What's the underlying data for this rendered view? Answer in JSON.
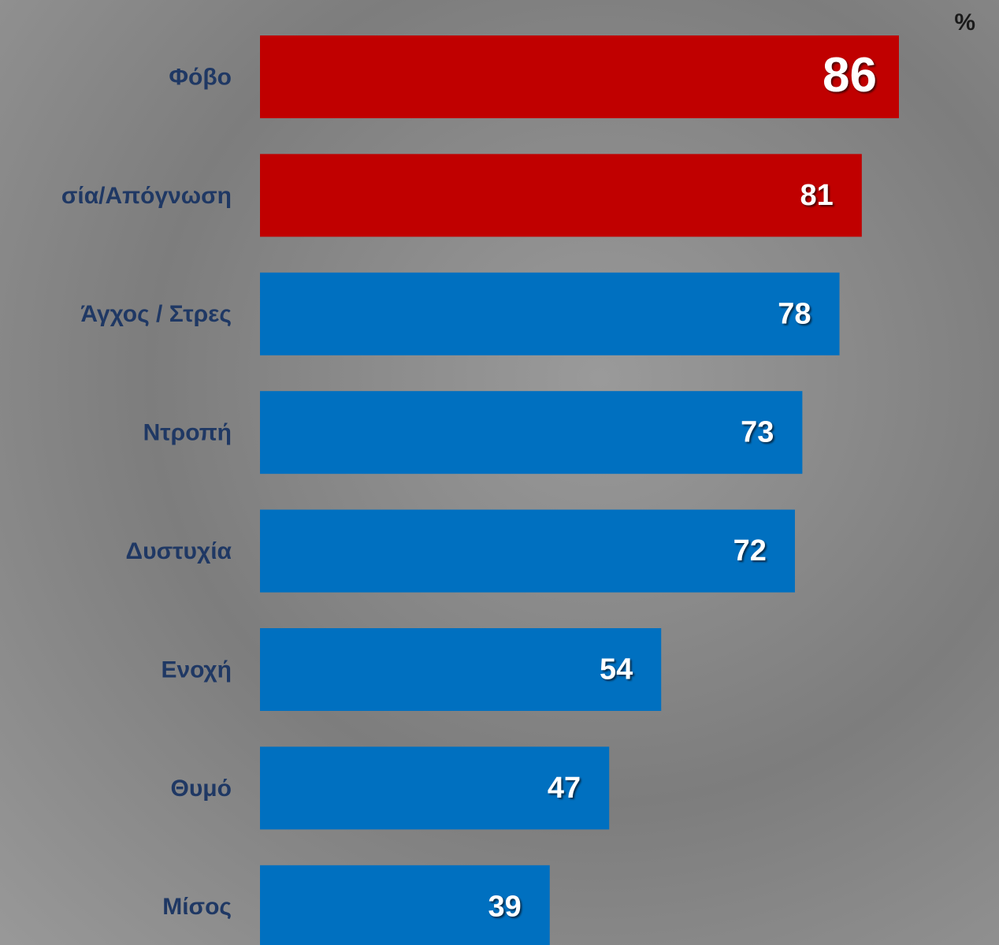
{
  "chart_data": {
    "type": "bar",
    "orientation": "horizontal",
    "unit": "%",
    "categories": [
      "Φόβο",
      "σία/Απόγνωση",
      "Άγχος / Στρες",
      "Ντροπή",
      "Δυστυχία",
      "Ενοχή",
      "Θυμό",
      "Μίσος"
    ],
    "values": [
      86,
      81,
      78,
      73,
      72,
      54,
      47,
      39
    ],
    "colors": [
      "#c00000",
      "#c00000",
      "#0070c0",
      "#0070c0",
      "#0070c0",
      "#0070c0",
      "#0070c0",
      "#0070c0"
    ],
    "xlim": [
      0,
      100
    ]
  }
}
